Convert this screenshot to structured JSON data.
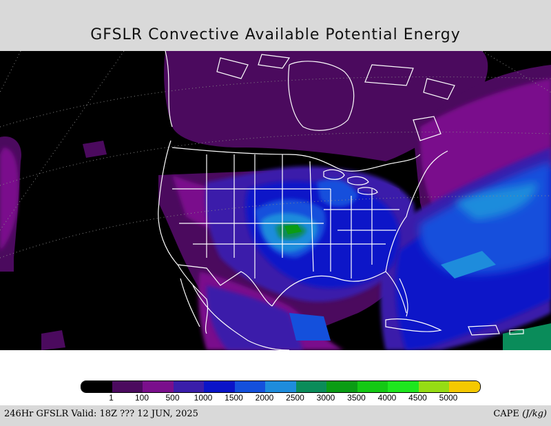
{
  "title": "GFSLR Convective Available Potential Energy",
  "footer": {
    "valid_text": "246Hr GFSLR Valid: 18Z ??? 12 JUN, 2025",
    "variable": "CAPE",
    "units": "(J/kg)"
  },
  "legend": {
    "colors": [
      "#000000",
      "#4b0a5e",
      "#7a0f8c",
      "#3a1eaa",
      "#0a14c8",
      "#1450dc",
      "#1e8cdc",
      "#0a8c5a",
      "#0a9c14",
      "#14c814",
      "#1ee61e",
      "#96dc14",
      "#f5c800"
    ],
    "labels": [
      "1",
      "100",
      "500",
      "1000",
      "1500",
      "2000",
      "2500",
      "3000",
      "3500",
      "4000",
      "4500",
      "5000"
    ]
  },
  "colors": {
    "background": "#d9d9d9",
    "map_ocean": "#000000",
    "boundary_lines": "#ffffff"
  }
}
